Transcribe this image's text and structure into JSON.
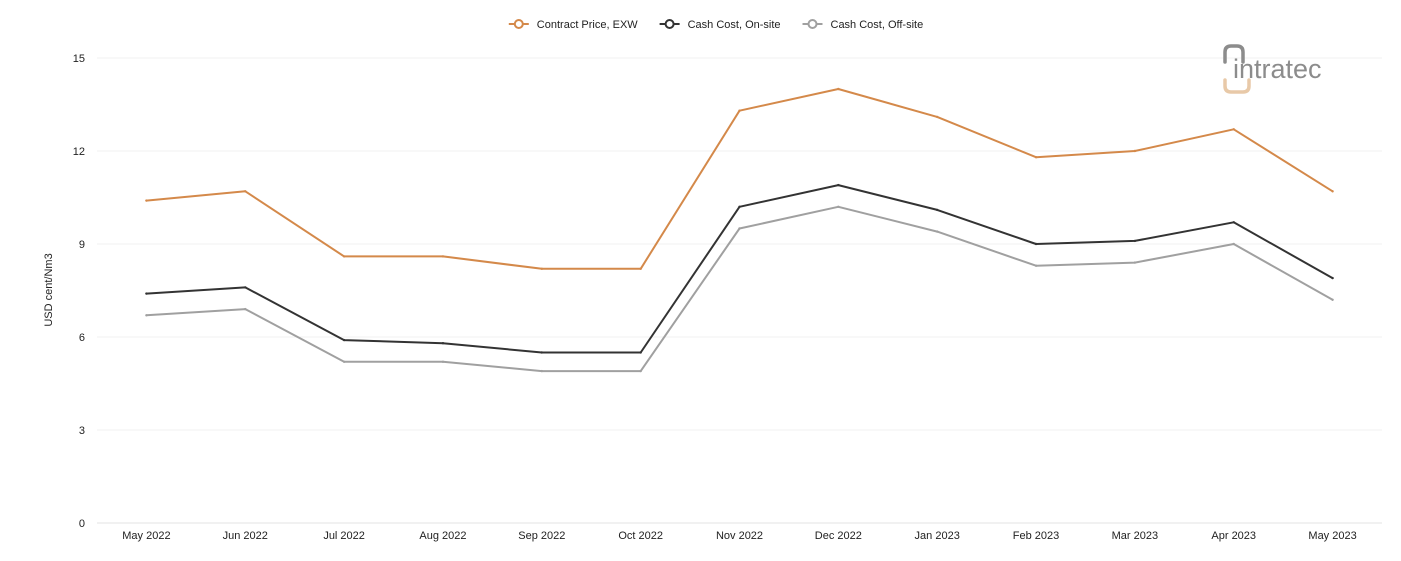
{
  "chart_data": {
    "type": "line",
    "categories": [
      "May 2022",
      "Jun 2022",
      "Jul 2022",
      "Aug 2022",
      "Sep 2022",
      "Oct 2022",
      "Nov 2022",
      "Dec 2022",
      "Jan 2023",
      "Feb 2023",
      "Mar 2023",
      "Apr 2023",
      "May 2023"
    ],
    "series": [
      {
        "name": "Contract Price, EXW",
        "color": "#d4894a",
        "values": [
          10.4,
          10.7,
          8.6,
          8.6,
          8.2,
          8.2,
          13.3,
          14.0,
          13.1,
          11.8,
          12.0,
          12.7,
          10.7
        ]
      },
      {
        "name": "Cash Cost, On-site",
        "color": "#333333",
        "values": [
          7.4,
          7.6,
          5.9,
          5.8,
          5.5,
          5.5,
          10.2,
          10.9,
          10.1,
          9.0,
          9.1,
          9.7,
          7.9
        ]
      },
      {
        "name": "Cash Cost, Off-site",
        "color": "#a0a0a0",
        "values": [
          6.7,
          6.9,
          5.2,
          5.2,
          4.9,
          4.9,
          9.5,
          10.2,
          9.4,
          8.3,
          8.4,
          9.0,
          7.2
        ]
      }
    ],
    "ylabel": "USD cent/Nm3",
    "ylim": [
      0,
      15
    ],
    "yticks": [
      0,
      3,
      6,
      9,
      12,
      15
    ],
    "grid": true,
    "legend_position": "top-center"
  },
  "logo": {
    "text": "intratec",
    "color": "#8c8c8c",
    "accent_color": "#e8c9a8"
  }
}
